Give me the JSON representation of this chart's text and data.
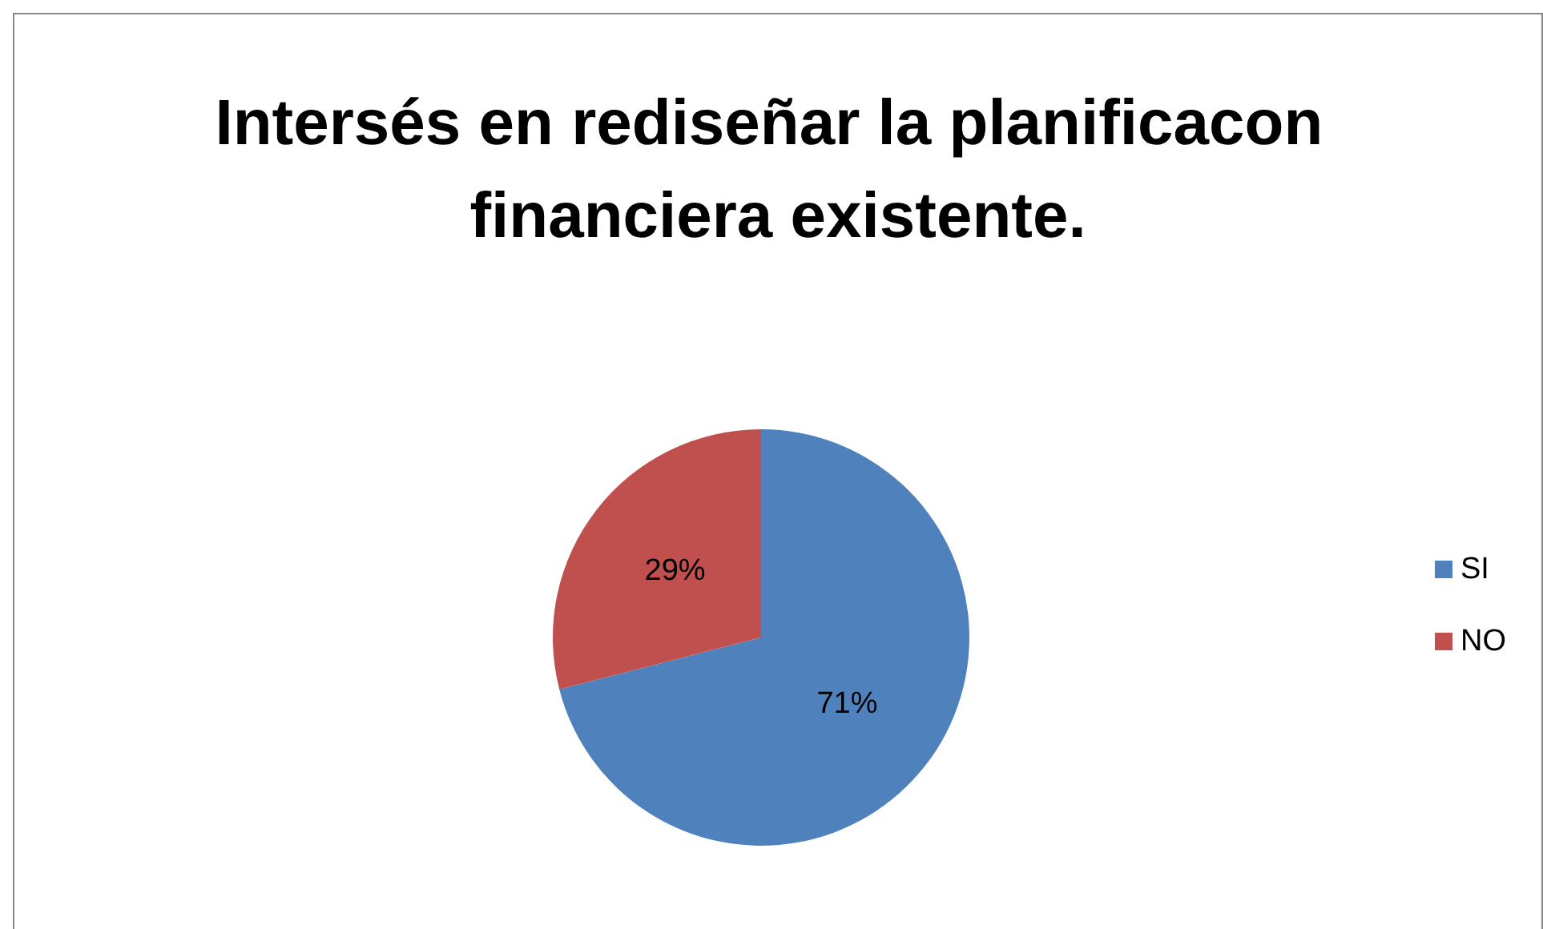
{
  "chart_data": {
    "type": "pie",
    "title": "Intersés en rediseñar la planificacon financiera existente.",
    "categories": [
      "SI",
      "NO"
    ],
    "values": [
      71,
      29
    ],
    "colors": [
      "#4f81bd",
      "#c0504d"
    ],
    "value_labels": [
      "71%",
      "29%"
    ],
    "legend": "right"
  }
}
